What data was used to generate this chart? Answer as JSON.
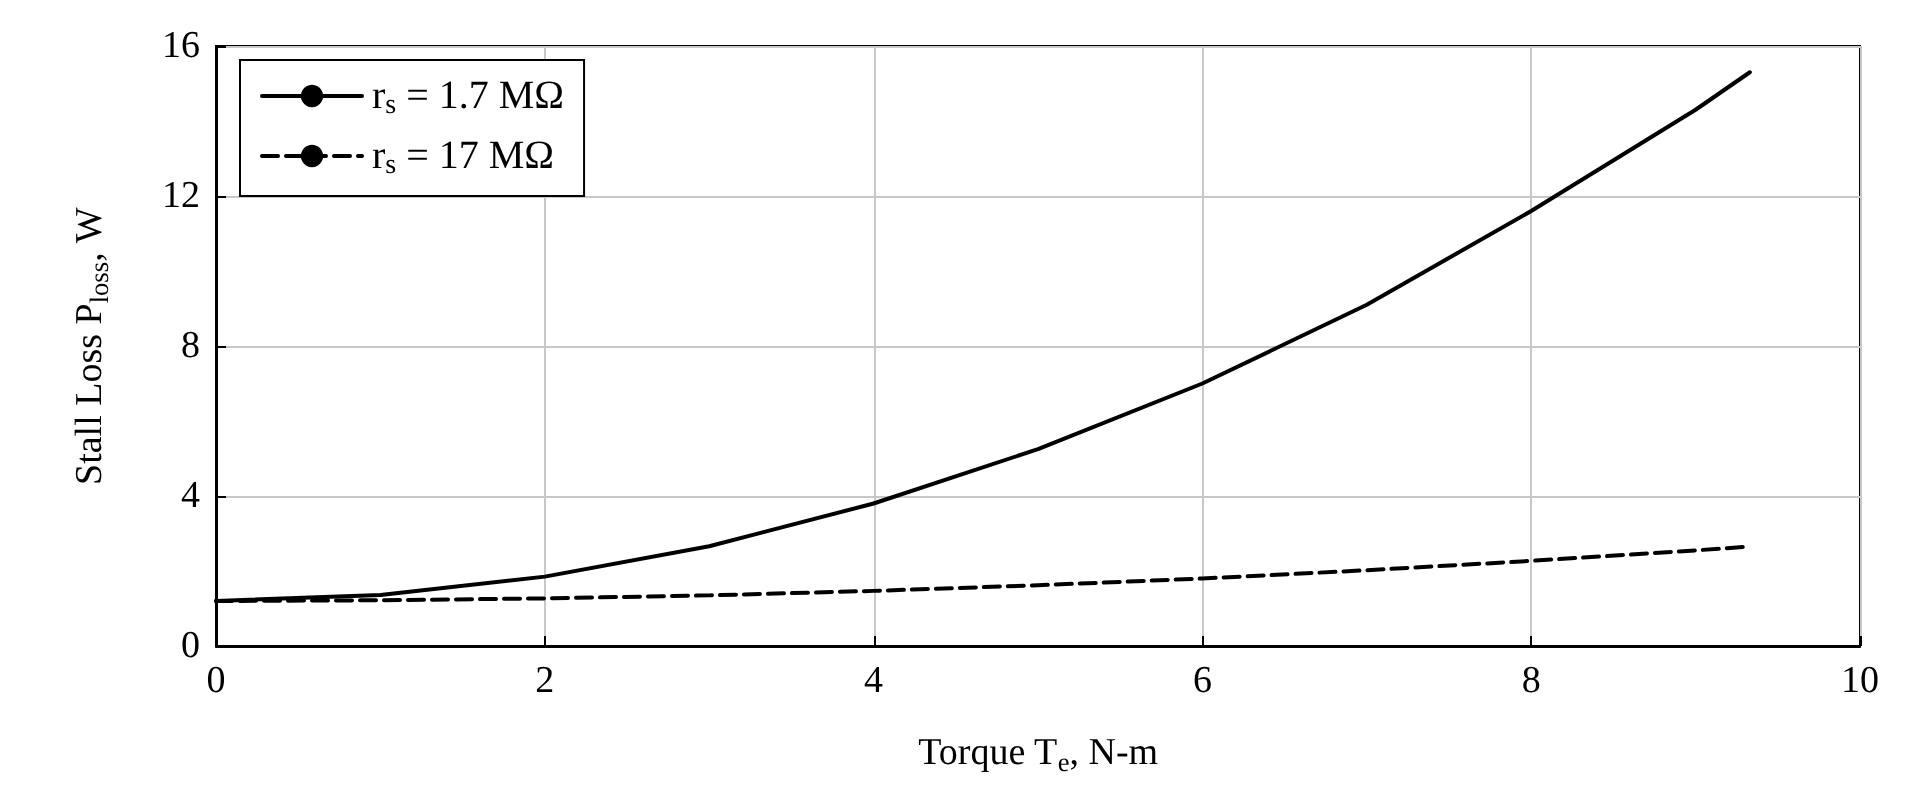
{
  "chart_data": {
    "type": "line",
    "xlabel": "Torque T$_{e}$, N-m",
    "ylabel": "Stall Loss P$_{loss}$, W",
    "xlim": [
      0,
      10
    ],
    "xticks": [
      0,
      2,
      4,
      6,
      8,
      10
    ],
    "ylim": [
      0,
      16
    ],
    "yticks": [
      0,
      4,
      8,
      12,
      16
    ],
    "grid": true,
    "legend": "top left",
    "marker": "none",
    "x": [
      0,
      1,
      2,
      3,
      4,
      5,
      6,
      7,
      8,
      9,
      9.33
    ],
    "series": [
      {
        "name": "r$_{s}$ = 1.7 MΩ",
        "color": "#000000",
        "line_style": "solid",
        "values": [
          1.2,
          1.36,
          1.85,
          2.66,
          3.8,
          5.25,
          7.0,
          9.1,
          11.6,
          14.3,
          15.3
        ]
      },
      {
        "name": "r$_{s}$ = 17 MΩ",
        "color": "#000000",
        "line_style": "dashed",
        "values": [
          1.2,
          1.22,
          1.27,
          1.35,
          1.47,
          1.62,
          1.8,
          2.02,
          2.27,
          2.55,
          2.65
        ]
      }
    ]
  }
}
